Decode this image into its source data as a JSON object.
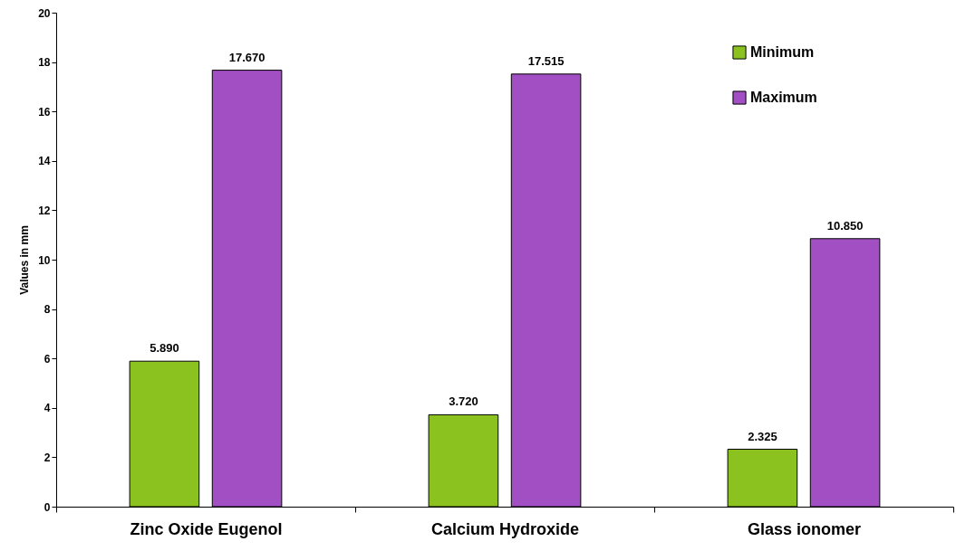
{
  "chart_data": {
    "type": "bar",
    "ylabel": "Values in mm",
    "categories": [
      "Zinc Oxide Eugenol",
      "Calcium Hydroxide",
      "Glass ionomer"
    ],
    "series": [
      {
        "name": "Minimum",
        "color": "#8cc21f",
        "values": [
          5.89,
          3.72,
          2.325
        ],
        "value_labels": [
          "5.890",
          "3.720",
          "2.325"
        ]
      },
      {
        "name": "Maximum",
        "color": "#a24fc4",
        "values": [
          17.67,
          17.515,
          10.85
        ],
        "value_labels": [
          "17.670",
          "17.515",
          "10.850"
        ]
      }
    ],
    "ylim": [
      0,
      20
    ],
    "yticks": [
      0,
      2,
      4,
      6,
      8,
      10,
      12,
      14,
      16,
      18,
      20
    ],
    "grid": false,
    "legend": "top right"
  }
}
